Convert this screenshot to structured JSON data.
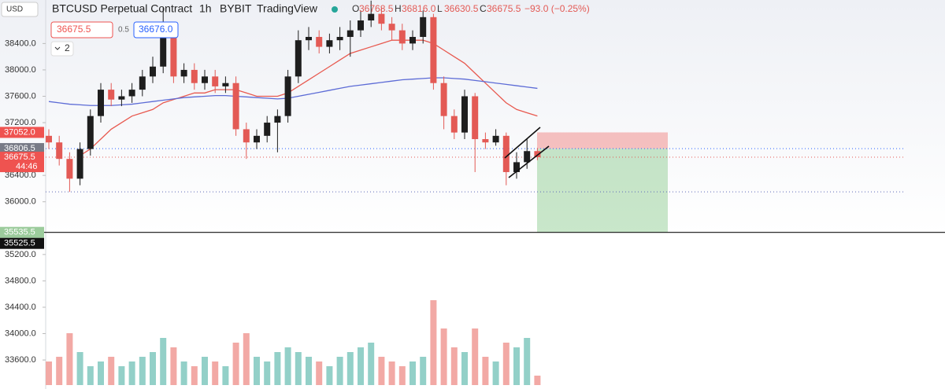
{
  "chart_data": {
    "type": "candlestick",
    "currency": "USD",
    "title": "BTCUSD Perpetual Contract",
    "interval": "1h",
    "exchange": "BYBIT",
    "source": "TradingView",
    "legend": [
      {
        "key": "O",
        "value": "36768.5"
      },
      {
        "key": "H",
        "value": "36816.0"
      },
      {
        "key": "L",
        "value": "36630.5"
      },
      {
        "key": "C",
        "value": "36675.5"
      }
    ],
    "change": "−93.0 (−0.25%)",
    "sell_button": "36675.5",
    "spread": "0.5",
    "buy_button": "36676.0",
    "indicators_toggle": "2",
    "ylim": [
      33160,
      39060
    ],
    "yticks": [
      {
        "value": 38400,
        "label": "38400.0"
      },
      {
        "value": 38000,
        "label": "38000.0"
      },
      {
        "value": 37600,
        "label": "37600.0"
      },
      {
        "value": 37200,
        "label": "37200.0"
      },
      {
        "value": 36400,
        "label": "36400.0"
      },
      {
        "value": 36000,
        "label": "36000.0"
      },
      {
        "value": 35200,
        "label": "35200.0"
      },
      {
        "value": 34800,
        "label": "34800.0"
      },
      {
        "value": 34400,
        "label": "34400.0"
      },
      {
        "value": 34000,
        "label": "34000.0"
      },
      {
        "value": 33600,
        "label": "33600.0"
      }
    ],
    "open": [
      37000,
      36900,
      36650,
      36350,
      36800,
      37300,
      37700,
      37550,
      37600,
      37700,
      37900,
      38050,
      38600,
      37900,
      38000,
      37800,
      37900,
      37750,
      37800,
      37100,
      36900,
      37000,
      37200,
      37300,
      37900,
      38450,
      38500,
      38350,
      38450,
      38500,
      38600,
      38750,
      38850,
      38700,
      38600,
      38400,
      38500,
      38800,
      37800,
      37300,
      37050,
      37600,
      36950,
      36900,
      37000,
      36450,
      36600,
      36768.5
    ],
    "high": [
      37100,
      37000,
      36750,
      36900,
      37400,
      37800,
      37800,
      37700,
      37800,
      38000,
      38200,
      38950,
      38700,
      38100,
      38100,
      38000,
      38000,
      37900,
      37900,
      37200,
      37100,
      37300,
      37400,
      38000,
      38600,
      38650,
      38600,
      38550,
      38650,
      38750,
      38900,
      39050,
      38950,
      38800,
      38700,
      38600,
      38900,
      38850,
      37900,
      37400,
      37700,
      37650,
      37050,
      37100,
      37050,
      36750,
      36950,
      36816
    ],
    "low": [
      36800,
      36550,
      36150,
      36250,
      36700,
      37200,
      37450,
      37450,
      37500,
      37600,
      37800,
      37950,
      37800,
      37800,
      37700,
      37700,
      37650,
      37650,
      37000,
      36650,
      36800,
      36900,
      36750,
      37200,
      37800,
      38300,
      38250,
      38250,
      38300,
      38200,
      38500,
      38650,
      38600,
      38450,
      38300,
      38300,
      38400,
      37700,
      37100,
      36950,
      36950,
      36450,
      36800,
      36850,
      36250,
      36350,
      36500,
      36630.5
    ],
    "close": [
      36900,
      36650,
      36350,
      36800,
      37300,
      37700,
      37550,
      37600,
      37700,
      37900,
      38050,
      38600,
      37900,
      38000,
      37800,
      37900,
      37750,
      37800,
      37100,
      36900,
      37000,
      37200,
      37300,
      37900,
      38450,
      38500,
      38350,
      38450,
      38500,
      38600,
      38750,
      38850,
      38700,
      38600,
      38400,
      38500,
      38800,
      37800,
      37300,
      37050,
      37600,
      36950,
      36900,
      37000,
      36450,
      36600,
      36768.5,
      36675.5
    ],
    "volume": [
      25,
      30,
      55,
      35,
      20,
      25,
      30,
      20,
      25,
      30,
      35,
      50,
      40,
      25,
      20,
      30,
      25,
      20,
      45,
      55,
      30,
      25,
      35,
      40,
      35,
      30,
      25,
      20,
      30,
      35,
      40,
      45,
      30,
      25,
      20,
      25,
      30,
      90,
      60,
      40,
      35,
      60,
      30,
      25,
      45,
      40,
      50,
      10
    ],
    "vlim": [
      0,
      100
    ],
    "up_color": "#1e1e1e",
    "down_color": "#e35a55",
    "volume_up_color": "#93d0c8",
    "volume_down_color": "#f2a9a5",
    "moving_averages": [
      {
        "color": "#e8594f",
        "values": [
          null,
          null,
          null,
          36700,
          36800,
          36950,
          37100,
          37200,
          37300,
          37350,
          37400,
          37500,
          37550,
          37600,
          37650,
          37650,
          37700,
          37700,
          37700,
          37650,
          37600,
          37600,
          37600,
          37650,
          37750,
          37850,
          37950,
          38050,
          38150,
          38250,
          38300,
          38350,
          38400,
          38450,
          38450,
          38450,
          38450,
          38400,
          38300,
          38200,
          38100,
          37950,
          37800,
          37650,
          37500,
          37400,
          37350,
          37300
        ]
      },
      {
        "color": "#5c6bd6",
        "values": [
          37520,
          37500,
          37480,
          37470,
          37460,
          37460,
          37460,
          37470,
          37480,
          37500,
          37520,
          37540,
          37560,
          37580,
          37590,
          37600,
          37610,
          37610,
          37600,
          37590,
          37580,
          37570,
          37560,
          37570,
          37600,
          37630,
          37660,
          37690,
          37720,
          37750,
          37770,
          37790,
          37810,
          37830,
          37850,
          37860,
          37870,
          37880,
          37880,
          37870,
          37860,
          37840,
          37820,
          37800,
          37780,
          37760,
          37740,
          37720
        ]
      }
    ],
    "levels": [
      {
        "value": 36806.5,
        "color": "#2962ff"
      },
      {
        "value": 36675.5,
        "color": "#e35a55"
      },
      {
        "value": 36150,
        "color": "#5d6ab8"
      }
    ],
    "position": {
      "stop": 37052,
      "entry": 36806.5,
      "target": 35535.5
    },
    "tags": [
      {
        "value": 37052,
        "label": "37052.0",
        "color": "#ef5350"
      },
      {
        "value": 36806.5,
        "label": "36806.5",
        "color": "#787b86"
      },
      {
        "value": 36675.5,
        "label": "36675.5",
        "sub": "44:46",
        "color": "#ef5350"
      },
      {
        "value": 35535.5,
        "label": "35535.5",
        "color": "#9ccc9c"
      }
    ],
    "cursor_label": "35525.5"
  }
}
